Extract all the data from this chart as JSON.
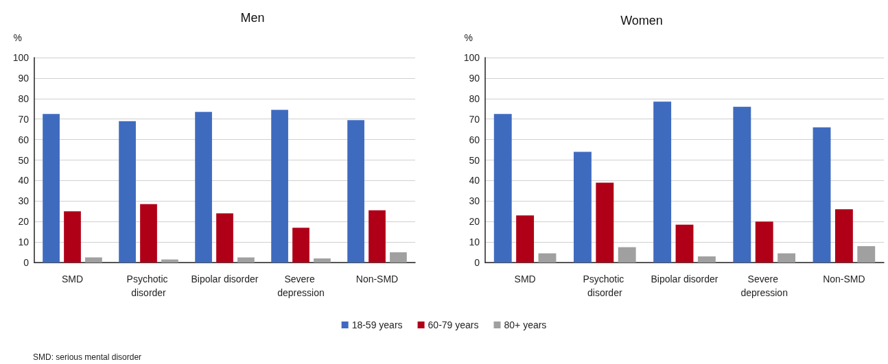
{
  "chart_data": [
    {
      "type": "bar",
      "title": "Men",
      "ylabel": "%",
      "categories": [
        "SMD",
        "Psychotic disorder",
        "Bipolar disorder",
        "Severe depression",
        "Non-SMD"
      ],
      "series": [
        {
          "color": "#3f6bbf",
          "values": [
            72.5,
            69,
            73.5,
            74.5,
            69.5
          ]
        },
        {
          "color": "#b00018",
          "values": [
            25,
            28.5,
            24,
            17,
            25.5
          ]
        },
        {
          "color": "#a0a0a0",
          "values": [
            2.5,
            1.5,
            2.5,
            2,
            5
          ]
        }
      ],
      "ylim": [
        0,
        100
      ],
      "yticks": [
        0,
        10,
        20,
        30,
        40,
        50,
        60,
        70,
        80,
        90,
        100
      ],
      "grid": "y",
      "legend": false,
      "annotations": [
        "SMD: serious mental disorder"
      ]
    },
    {
      "type": "bar",
      "title": "Women",
      "ylabel": "%",
      "categories": [
        "SMD",
        "Psychotic disorder",
        "Bipolar disorder",
        "Severe depression",
        "Non-SMD"
      ],
      "series": [
        {
          "name": "18-59 years",
          "color": "#3f6bbf",
          "values": [
            72.5,
            54,
            78.5,
            76,
            66
          ]
        },
        {
          "name": "60-79 years",
          "color": "#b00018",
          "values": [
            23,
            39,
            18.5,
            20,
            26
          ]
        },
        {
          "name": "80+ years",
          "color": "#a0a0a0",
          "values": [
            4.5,
            7.5,
            3,
            4.5,
            8
          ]
        }
      ],
      "ylim": [
        0,
        100
      ],
      "yticks": [
        0,
        10,
        20,
        30,
        40,
        50,
        60,
        70,
        80,
        90,
        100
      ],
      "grid": "y",
      "legend": "bottom"
    }
  ]
}
